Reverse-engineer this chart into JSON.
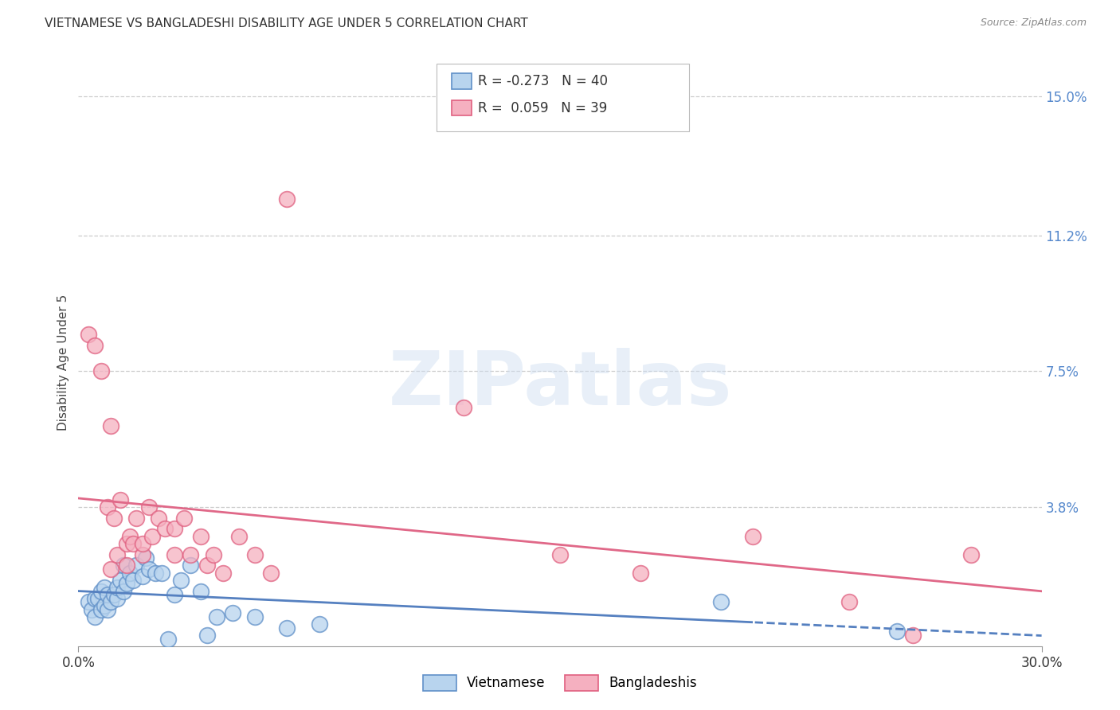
{
  "title": "VIETNAMESE VS BANGLADESHI DISABILITY AGE UNDER 5 CORRELATION CHART",
  "source": "Source: ZipAtlas.com",
  "ylabel": "Disability Age Under 5",
  "xlim": [
    0.0,
    0.3
  ],
  "ylim": [
    0.0,
    0.155
  ],
  "yticks": [
    0.038,
    0.075,
    0.112,
    0.15
  ],
  "ytick_labels": [
    "3.8%",
    "7.5%",
    "11.2%",
    "15.0%"
  ],
  "xticks": [
    0.0,
    0.3
  ],
  "xtick_labels": [
    "0.0%",
    "30.0%"
  ],
  "legend_r_viet": "-0.273",
  "legend_n_viet": "40",
  "legend_r_bang": "0.059",
  "legend_n_bang": "39",
  "viet_color": "#b8d4ee",
  "bang_color": "#f5b0c0",
  "viet_edge_color": "#6090c8",
  "bang_edge_color": "#e06080",
  "viet_line_color": "#5580c0",
  "bang_line_color": "#e06888",
  "grid_color": "#cccccc",
  "viet_x": [
    0.003,
    0.004,
    0.005,
    0.005,
    0.006,
    0.007,
    0.007,
    0.008,
    0.008,
    0.009,
    0.009,
    0.01,
    0.011,
    0.012,
    0.012,
    0.013,
    0.014,
    0.014,
    0.015,
    0.016,
    0.017,
    0.018,
    0.02,
    0.021,
    0.022,
    0.024,
    0.026,
    0.028,
    0.03,
    0.032,
    0.035,
    0.038,
    0.04,
    0.043,
    0.048,
    0.055,
    0.065,
    0.075,
    0.2,
    0.255
  ],
  "viet_y": [
    0.012,
    0.01,
    0.008,
    0.013,
    0.013,
    0.01,
    0.015,
    0.011,
    0.016,
    0.01,
    0.014,
    0.012,
    0.014,
    0.013,
    0.016,
    0.018,
    0.015,
    0.022,
    0.017,
    0.02,
    0.018,
    0.022,
    0.019,
    0.024,
    0.021,
    0.02,
    0.02,
    0.002,
    0.014,
    0.018,
    0.022,
    0.015,
    0.003,
    0.008,
    0.009,
    0.008,
    0.005,
    0.006,
    0.012,
    0.004
  ],
  "bang_x": [
    0.003,
    0.005,
    0.007,
    0.009,
    0.01,
    0.011,
    0.012,
    0.013,
    0.015,
    0.015,
    0.016,
    0.017,
    0.018,
    0.02,
    0.02,
    0.022,
    0.023,
    0.025,
    0.027,
    0.03,
    0.03,
    0.033,
    0.035,
    0.038,
    0.04,
    0.042,
    0.045,
    0.05,
    0.055,
    0.06,
    0.065,
    0.12,
    0.15,
    0.175,
    0.21,
    0.24,
    0.26,
    0.278,
    0.01
  ],
  "bang_y": [
    0.085,
    0.082,
    0.075,
    0.038,
    0.021,
    0.035,
    0.025,
    0.04,
    0.028,
    0.022,
    0.03,
    0.028,
    0.035,
    0.025,
    0.028,
    0.038,
    0.03,
    0.035,
    0.032,
    0.032,
    0.025,
    0.035,
    0.025,
    0.03,
    0.022,
    0.025,
    0.02,
    0.03,
    0.025,
    0.02,
    0.122,
    0.065,
    0.025,
    0.02,
    0.03,
    0.012,
    0.003,
    0.025,
    0.06
  ],
  "background_color": "#ffffff"
}
